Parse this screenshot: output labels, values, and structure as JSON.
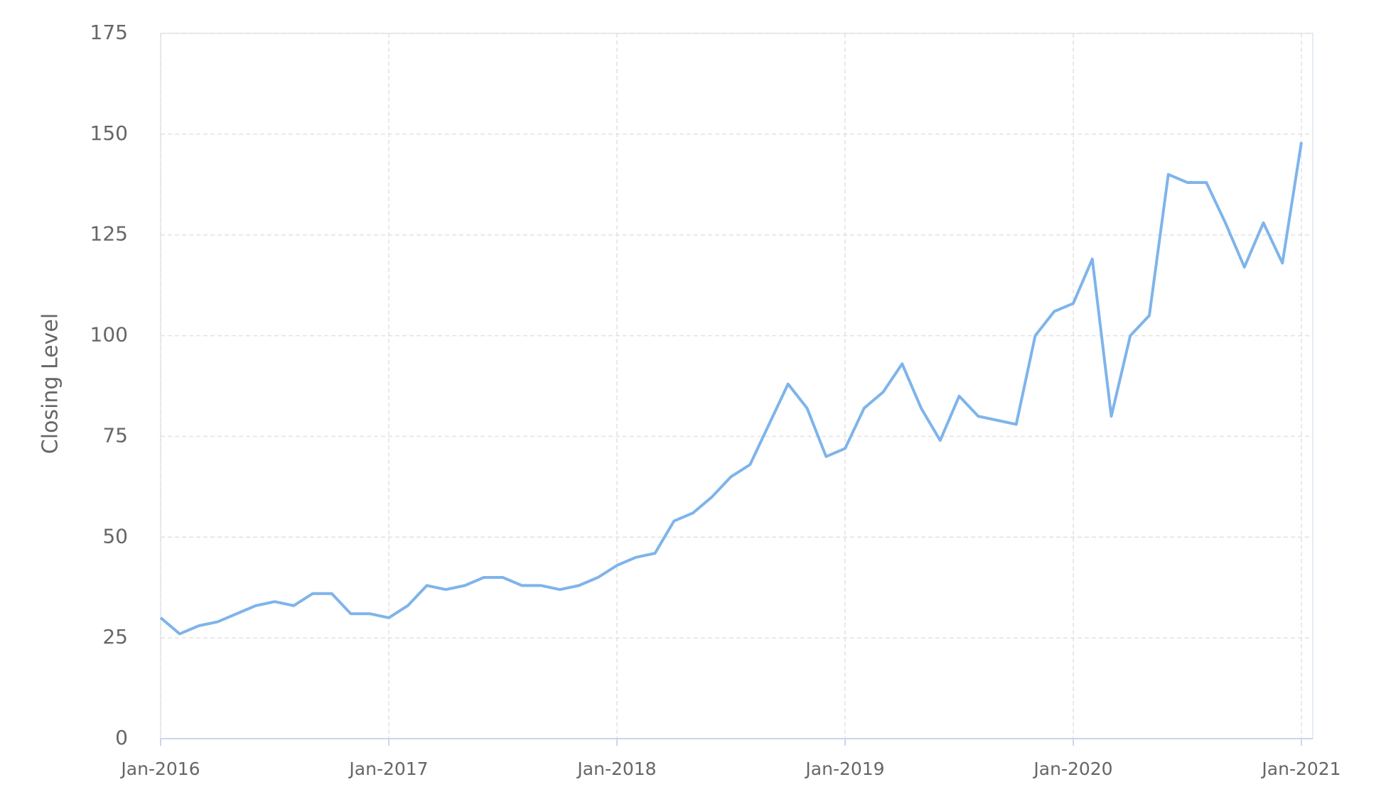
{
  "chart_data": {
    "type": "line",
    "y_label": "Closing Level",
    "x": [
      "2016-01",
      "2016-02",
      "2016-03",
      "2016-04",
      "2016-05",
      "2016-06",
      "2016-07",
      "2016-08",
      "2016-09",
      "2016-10",
      "2016-11",
      "2016-12",
      "2017-01",
      "2017-02",
      "2017-03",
      "2017-04",
      "2017-05",
      "2017-06",
      "2017-07",
      "2017-08",
      "2017-09",
      "2017-10",
      "2017-11",
      "2017-12",
      "2018-01",
      "2018-02",
      "2018-03",
      "2018-04",
      "2018-05",
      "2018-06",
      "2018-07",
      "2018-08",
      "2018-09",
      "2018-10",
      "2018-11",
      "2018-12",
      "2019-01",
      "2019-02",
      "2019-03",
      "2019-04",
      "2019-05",
      "2019-06",
      "2019-07",
      "2019-08",
      "2019-09",
      "2019-10",
      "2019-11",
      "2019-12",
      "2020-01",
      "2020-02",
      "2020-03",
      "2020-04",
      "2020-05",
      "2020-06",
      "2020-07",
      "2020-08",
      "2020-09",
      "2020-10",
      "2020-11",
      "2020-12",
      "2021-01"
    ],
    "series": [
      {
        "name": "Closing Level",
        "color": "#7eb4ea",
        "values": [
          30,
          26,
          28,
          29,
          31,
          33,
          34,
          33,
          36,
          36,
          31,
          31,
          30,
          33,
          38,
          37,
          38,
          40,
          40,
          38,
          38,
          37,
          38,
          40,
          43,
          45,
          46,
          54,
          56,
          60,
          65,
          68,
          78,
          88,
          82,
          70,
          72,
          82,
          86,
          93,
          82,
          74,
          85,
          80,
          79,
          78,
          100,
          106,
          108,
          119,
          80,
          100,
          105,
          140,
          138,
          138,
          128,
          117,
          128,
          118,
          148
        ]
      }
    ],
    "xlim": [
      "2016-01",
      "2021-01"
    ],
    "xticks": [
      {
        "value": "2016-01",
        "label": "Jan-2016"
      },
      {
        "value": "2017-01",
        "label": "Jan-2017"
      },
      {
        "value": "2018-01",
        "label": "Jan-2018"
      },
      {
        "value": "2019-01",
        "label": "Jan-2019"
      },
      {
        "value": "2020-01",
        "label": "Jan-2020"
      },
      {
        "value": "2021-01",
        "label": "Jan-2021"
      }
    ],
    "ylim": [
      0,
      175
    ],
    "yticks": [
      0,
      25,
      50,
      75,
      100,
      125,
      150,
      175
    ],
    "grid": true
  }
}
